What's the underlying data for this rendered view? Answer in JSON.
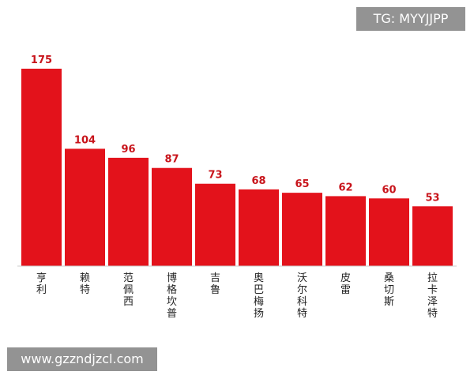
{
  "watermarks": {
    "top_right": "TG: MYYJJPP",
    "bottom_left": "www.gzzndjzcl.com"
  },
  "colors": {
    "bar": "#e3121b",
    "value_label": "#c8141b",
    "category_label": "#222222"
  },
  "chart_data": {
    "type": "bar",
    "categories": [
      "亨利",
      "赖特",
      "范佩西",
      "博格坎普",
      "吉鲁",
      "奥巴梅扬",
      "沃尔科特",
      "皮雷",
      "桑切斯",
      "拉卡泽特"
    ],
    "values": [
      175,
      104,
      96,
      87,
      73,
      68,
      65,
      62,
      60,
      53
    ],
    "title": "",
    "xlabel": "",
    "ylabel": "",
    "ylim": [
      0,
      175
    ],
    "grid": false,
    "legend": "none",
    "data_labels": true
  }
}
